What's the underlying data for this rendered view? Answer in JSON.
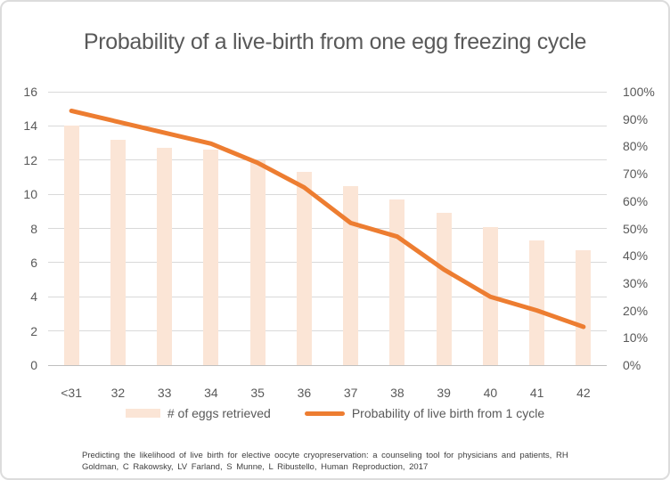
{
  "chart_data": {
    "type": "bar",
    "subtype": "combo-bar-line",
    "title": "Probability of a live-birth from one egg freezing cycle",
    "categories": [
      "<31",
      "32",
      "33",
      "34",
      "35",
      "36",
      "37",
      "38",
      "39",
      "40",
      "41",
      "42"
    ],
    "series": [
      {
        "name": "# of eggs retrieved",
        "type": "bar",
        "axis": "left",
        "color": "#FBE5D6",
        "values": [
          14,
          13.2,
          12.7,
          12.6,
          12,
          11.3,
          10.5,
          9.7,
          8.9,
          8.1,
          7.3,
          6.7
        ]
      },
      {
        "name": "Probability of live birth from 1 cycle",
        "type": "line",
        "axis": "right",
        "color": "#ED7D31",
        "values_percent": [
          93,
          89,
          85,
          81,
          74,
          65,
          52,
          47,
          35,
          25,
          20,
          14
        ]
      }
    ],
    "left_axis": {
      "min": 0,
      "max": 16,
      "step": 2,
      "tick_labels": [
        "0",
        "2",
        "4",
        "6",
        "8",
        "10",
        "12",
        "14",
        "16"
      ]
    },
    "right_axis": {
      "min": 0,
      "max": 100,
      "step": 10,
      "suffix": "%",
      "tick_labels": [
        "0%",
        "10%",
        "20%",
        "30%",
        "40%",
        "50%",
        "60%",
        "70%",
        "80%",
        "90%",
        "100%"
      ]
    },
    "grid": true,
    "legend_position": "bottom",
    "xlabel": "",
    "ylabel": ""
  },
  "footnote": {
    "line1": "Predicting the likelihood of live birth for elective oocyte cryopreservation: a counseling tool for physicians and patients, RH",
    "line2": "Goldman, C Rakowsky, LV Farland, S Munne, L Ribustello, Human Reproduction, 2017"
  },
  "colors": {
    "bar_fill": "#FBE5D6",
    "line": "#ED7D31",
    "gridline": "#D9D9D9",
    "axis_line": "#BFBFBF",
    "text": "#595959",
    "footnote_text": "#3F3F3F",
    "border": "#DCDCDC",
    "background": "#FFFFFF"
  }
}
